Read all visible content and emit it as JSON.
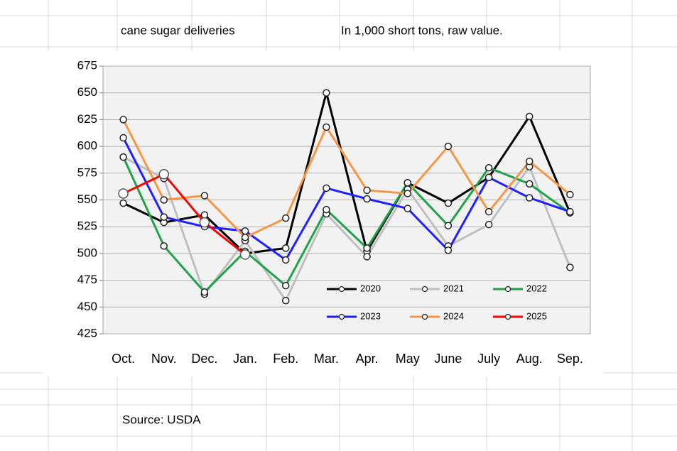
{
  "chart_data": {
    "type": "line",
    "title": "cane sugar deliveries",
    "subtitle": "In 1,000 short tons, raw value.",
    "source": "Source: USDA",
    "categories": [
      "Oct.",
      "Nov.",
      "Dec.",
      "Jan.",
      "Feb.",
      "Mar.",
      "Apr.",
      "May",
      "June",
      "July",
      "Aug.",
      "Sep."
    ],
    "series": [
      {
        "name": "2020",
        "color": "#000000",
        "values": [
          547,
          529,
          536,
          500,
          505,
          650,
          502,
          566,
          547,
          571,
          628,
          538
        ]
      },
      {
        "name": "2021",
        "color": "#bfbfbf",
        "values": [
          590,
          570,
          462,
          512,
          456,
          537,
          497,
          560,
          507,
          527,
          581,
          487
        ]
      },
      {
        "name": "2022",
        "color": "#1fa34a",
        "values": [
          590,
          507,
          464,
          502,
          470,
          541,
          505,
          566,
          526,
          580,
          565,
          538
        ]
      },
      {
        "name": "2023",
        "color": "#1f1fff",
        "values": [
          608,
          534,
          525,
          521,
          494,
          561,
          551,
          542,
          503,
          571,
          552,
          539
        ]
      },
      {
        "name": "2024",
        "color": "#f79646",
        "values": [
          625,
          550,
          554,
          515,
          533,
          618,
          559,
          556,
          600,
          539,
          586,
          555
        ]
      },
      {
        "name": "2025",
        "color": "#ff0000",
        "values": [
          556,
          574,
          529,
          499,
          null,
          null,
          null,
          null,
          null,
          null,
          null,
          null
        ]
      }
    ],
    "ylim": [
      425,
      675
    ],
    "yticks": [
      425,
      450,
      475,
      500,
      525,
      550,
      575,
      600,
      625,
      650,
      675
    ],
    "grid": true,
    "legend": "lower-right"
  }
}
